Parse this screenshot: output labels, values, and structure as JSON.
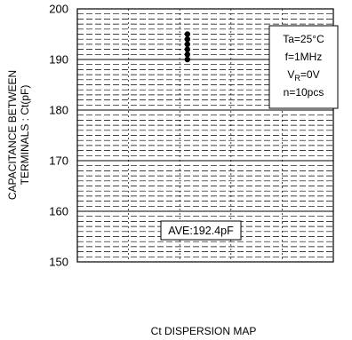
{
  "chart_data": {
    "type": "scatter",
    "ylabel": [
      "CAPACITANCE BETWEEN",
      "TERMINALS : Ct(pF)"
    ],
    "ylim": [
      150,
      200
    ],
    "yticks": [
      150,
      160,
      170,
      180,
      190,
      200
    ],
    "grid": true,
    "series": [
      {
        "values": [
          190,
          191,
          192,
          193,
          194,
          195
        ]
      }
    ],
    "conditions": {
      "lines": [
        {
          "text": "Ta=25°C"
        },
        {
          "text": "f=1MHz"
        },
        {
          "main": "V",
          "sub": "R",
          "rest": "=0V"
        },
        {
          "text": "n=10pcs"
        }
      ],
      "placement": "top-right"
    },
    "annotation": "AVE:192.4pF",
    "caption": "Ct DISPERSION MAP",
    "colors": {
      "marker": "#000000",
      "grid": "#000000",
      "background": "#ffffff"
    }
  }
}
